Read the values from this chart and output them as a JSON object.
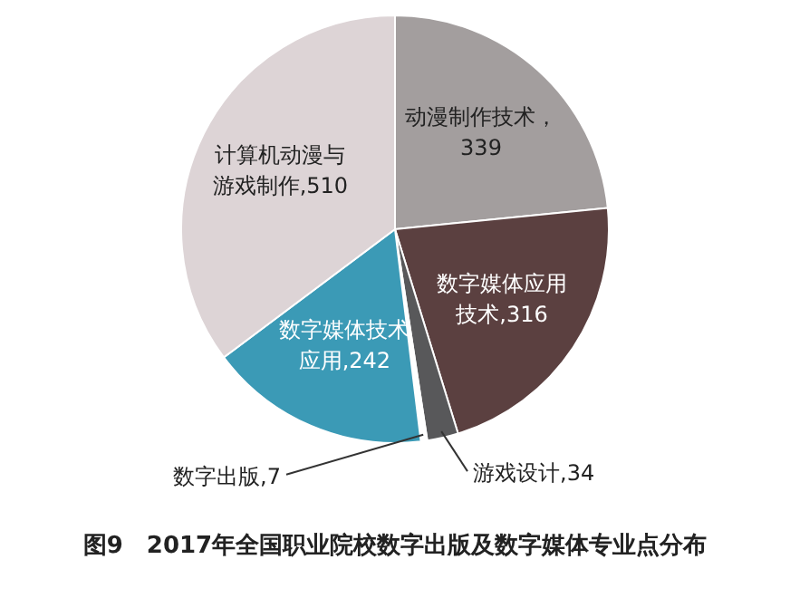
{
  "chart_data": {
    "type": "pie",
    "title": "图9　2017年全国职业院校数字出版及数字媒体专业点分布",
    "categories": [
      "动漫制作技术",
      "数字媒体应用技术",
      "游戏设计",
      "数字出版",
      "数字媒体技术应用",
      "计算机动漫与游戏制作"
    ],
    "values": [
      339,
      316,
      34,
      7,
      242,
      510
    ],
    "colors": [
      "#a39e9e",
      "#5b4040",
      "#58585a",
      "#ffffff",
      "#3b9ab6",
      "#ddd4d6"
    ],
    "value_labels": [
      "，339",
      ",316",
      ",34",
      ",7",
      ",242",
      ",510"
    ],
    "legend": false
  }
}
